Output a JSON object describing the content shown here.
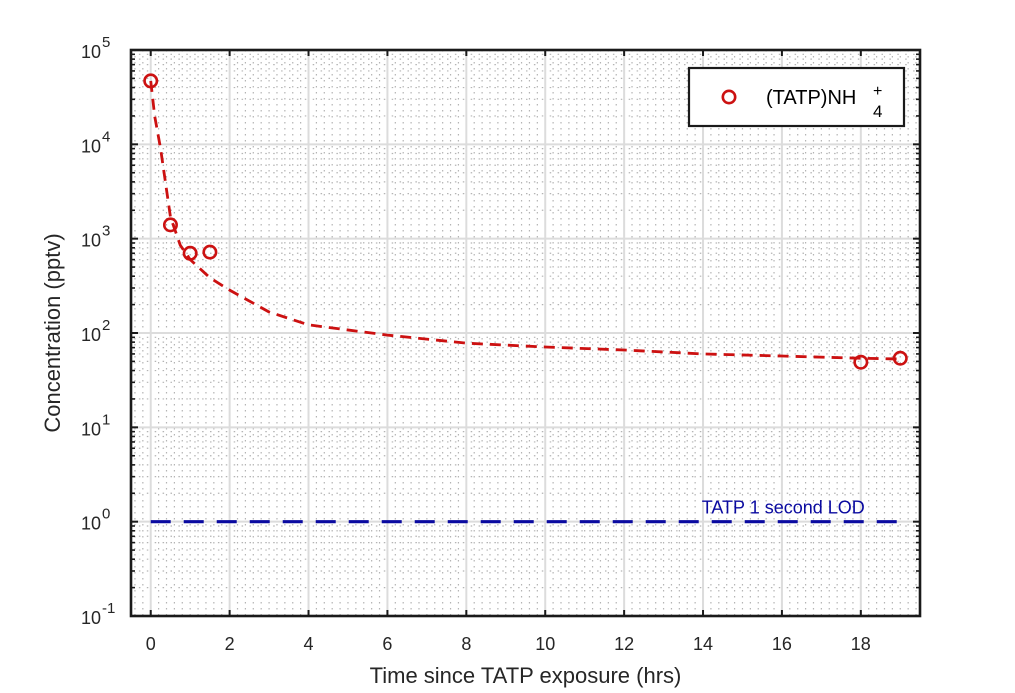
{
  "chart_data": {
    "type": "scatter",
    "title": "",
    "xlabel": "Time since TATP exposure (hrs)",
    "ylabel": "Concentration (pptv)",
    "xlim": [
      -0.5,
      19.5
    ],
    "ylim": [
      0.1,
      100000
    ],
    "yscale": "log",
    "grid": true,
    "x_ticks": [
      0,
      2,
      4,
      6,
      8,
      10,
      12,
      14,
      16,
      18
    ],
    "x_tick_labels": [
      "0",
      "2",
      "4",
      "6",
      "8",
      "10",
      "12",
      "14",
      "16",
      "18"
    ],
    "y_ticks": [
      0.1,
      1,
      10,
      100,
      1000,
      10000,
      100000
    ],
    "y_tick_labels": [
      {
        "base": "10",
        "exp": "-1"
      },
      {
        "base": "10",
        "exp": "0"
      },
      {
        "base": "10",
        "exp": "1"
      },
      {
        "base": "10",
        "exp": "2"
      },
      {
        "base": "10",
        "exp": "3"
      },
      {
        "base": "10",
        "exp": "4"
      },
      {
        "base": "10",
        "exp": "5"
      }
    ],
    "series": [
      {
        "name": "(TATP)NH4+",
        "legend_label": {
          "main": "(TATP)NH",
          "sup": "+",
          "sub": "4"
        },
        "marker": "open-circle",
        "color": "#cc1111",
        "x": [
          0,
          0.5,
          1,
          1.5,
          18,
          19
        ],
        "y": [
          47000,
          1400,
          700,
          720,
          49,
          54
        ]
      },
      {
        "name": "fit",
        "style": "dashed-line",
        "color": "#cc1111",
        "x": [
          0,
          0.1,
          0.25,
          0.5,
          0.75,
          1,
          1.5,
          2,
          3,
          4,
          6,
          8,
          10,
          12,
          14,
          16,
          18,
          19
        ],
        "y": [
          47000,
          20000,
          9000,
          1700,
          850,
          600,
          385,
          285,
          167,
          122,
          95,
          78,
          71,
          66,
          60,
          57,
          54,
          53
        ]
      }
    ],
    "reference_line": {
      "label": "TATP 1 second LOD",
      "y": 1,
      "x_range": [
        0,
        19
      ],
      "color": "#0a0aa0",
      "style": "dashed"
    },
    "legend": {
      "position": "top-right"
    }
  }
}
